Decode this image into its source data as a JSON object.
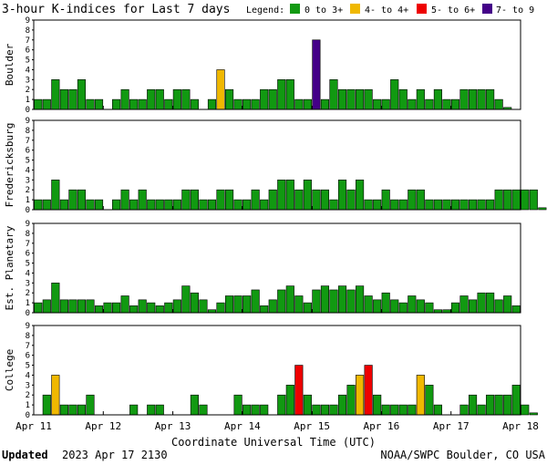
{
  "title": "3-hour K-indices for Last 7 days",
  "legend": {
    "label": "Legend:",
    "items": [
      {
        "label": "0 to 3+",
        "color": "#119911"
      },
      {
        "label": "4- to 4+",
        "color": "#f0b800"
      },
      {
        "label": "5- to 6+",
        "color": "#ee0000"
      },
      {
        "label": "7- to 9",
        "color": "#440088"
      }
    ]
  },
  "xlabel": "Coordinate Universal Time (UTC)",
  "footer": {
    "updated_label": "Updated",
    "updated_value": "2023 Apr 17 2130",
    "credit": "NOAA/SWPC Boulder, CO USA"
  },
  "chart_data": {
    "type": "bar",
    "x_tick_labels": [
      "Apr 11",
      "Apr 12",
      "Apr 13",
      "Apr 14",
      "Apr 15",
      "Apr 16",
      "Apr 17",
      "Apr 18"
    ],
    "yticks": [
      "0",
      "1",
      "2",
      "3",
      "4",
      "5",
      "6",
      "7",
      "8",
      "9"
    ],
    "ylim": [
      0,
      9
    ],
    "intervals_per_day": 8,
    "panels": [
      {
        "name": "Boulder",
        "values": [
          1,
          1,
          3,
          2,
          2,
          3,
          1,
          1,
          0,
          1,
          2,
          1,
          1,
          2,
          2,
          1,
          2,
          2,
          1,
          0,
          1,
          4,
          2,
          1,
          1,
          1,
          2,
          2,
          3,
          3,
          1,
          1,
          7,
          1,
          3,
          2,
          2,
          2,
          2,
          1,
          1,
          3,
          2,
          1,
          2,
          1,
          2,
          1,
          1,
          2,
          2,
          2,
          2,
          1,
          0.2
        ]
      },
      {
        "name": "Fredericksburg",
        "values": [
          1,
          1,
          3,
          1,
          2,
          2,
          1,
          1,
          0,
          1,
          2,
          1,
          2,
          1,
          1,
          1,
          1,
          2,
          2,
          1,
          1,
          2,
          2,
          1,
          1,
          2,
          1,
          2,
          3,
          3,
          2,
          3,
          2,
          2,
          1,
          3,
          2,
          3,
          1,
          1,
          2,
          1,
          1,
          2,
          2,
          1,
          1,
          1,
          1,
          1,
          1,
          1,
          1,
          2,
          2,
          2,
          2,
          2,
          0.2
        ]
      },
      {
        "name": "Est. Planetary",
        "values": [
          1,
          1.3,
          3,
          1.3,
          1.3,
          1.3,
          1.3,
          0.7,
          1,
          1,
          1.7,
          0.7,
          1.3,
          1,
          0.7,
          1,
          1.3,
          2.7,
          2,
          1.3,
          0.3,
          1,
          1.7,
          1.7,
          1.7,
          2.3,
          0.7,
          1.3,
          2.3,
          2.7,
          1.7,
          1,
          2.3,
          2.7,
          2.3,
          2.7,
          2.3,
          2.7,
          1.7,
          1.3,
          2,
          1.3,
          1,
          1.7,
          1.3,
          1,
          0.3,
          0.3,
          1,
          1.7,
          1.3,
          2,
          2,
          1.3,
          1.7,
          0.7
        ]
      },
      {
        "name": "College",
        "values": [
          0,
          2,
          4,
          1,
          1,
          1,
          2,
          0,
          0,
          0,
          0,
          1,
          0,
          1,
          1,
          0,
          0,
          0,
          2,
          1,
          0,
          0,
          0,
          2,
          1,
          1,
          1,
          0,
          2,
          3,
          5,
          2,
          1,
          1,
          1,
          2,
          3,
          4,
          5,
          2,
          1,
          1,
          1,
          1,
          4,
          3,
          1,
          0,
          0,
          1,
          2,
          1,
          2,
          2,
          2,
          3,
          1,
          0.2
        ]
      }
    ]
  }
}
